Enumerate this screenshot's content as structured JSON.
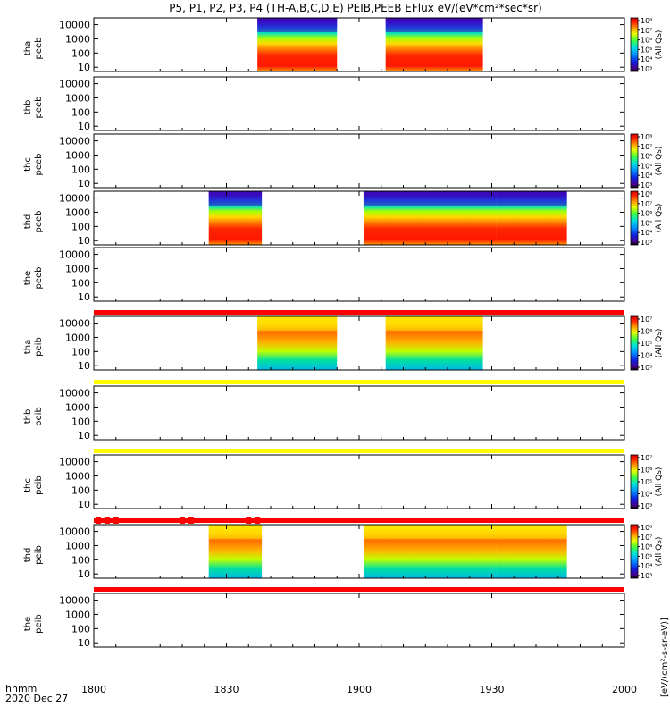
{
  "chart_data": {
    "type": "heatmap",
    "title": "P5, P1, P2, P3, P4 (TH-A,B,C,D,E) PEIB,PEEB EFlux eV/(eV*cm²*sec*sr)",
    "x": {
      "ticks": [
        "1800",
        "1830",
        "1900",
        "1930",
        "2000"
      ],
      "tick_minutes": [
        0,
        30,
        60,
        90,
        120
      ],
      "range_minutes": [
        0,
        120
      ],
      "label": "hhmm",
      "date": "2020 Dec 27"
    },
    "y": {
      "scale": "log",
      "range": [
        5,
        30000
      ],
      "ticks": [
        "10000",
        "1000",
        "100",
        "10"
      ],
      "tick_values": [
        10000,
        1000,
        100,
        10
      ]
    },
    "colorbars": [
      {
        "panels": [
          0,
          1
        ],
        "ticks": [
          "10⁸",
          "10⁷",
          "10⁶",
          "10⁵",
          "10⁴",
          "10³"
        ],
        "label": "(All Qs)"
      },
      {
        "panels": [
          2
        ],
        "ticks": [
          "10⁸",
          "10⁷",
          "10⁶",
          "10⁵",
          "10⁴",
          "10³"
        ],
        "label": "(All Qs)"
      },
      {
        "panels": [
          3,
          4
        ],
        "ticks": [
          "10⁸",
          "10⁷",
          "10⁶",
          "10⁵",
          "10⁴",
          "10³"
        ],
        "label": "(All Qs)"
      },
      {
        "panels": [
          5,
          6
        ],
        "ticks": [
          "10⁷",
          "10⁶",
          "10⁵",
          "10⁴",
          "10³"
        ],
        "label": "(All Qs)"
      },
      {
        "panels": [
          7
        ],
        "ticks": [
          "10⁷",
          "10⁶",
          "10⁵",
          "10⁴",
          "10³"
        ],
        "label": "(All Qs)"
      },
      {
        "panels": [
          8,
          9
        ],
        "ticks": [
          "10⁸",
          "10⁷",
          "10⁶",
          "10⁵",
          "10⁴",
          "10³"
        ],
        "label": "(All Qs)"
      }
    ],
    "colorbar_unit": "[eV/(cm²-s-sr-eV)]",
    "panels": [
      {
        "line1": "tha",
        "line2": "peeb",
        "flag_above": null,
        "flag_marks": [],
        "intervals": [
          {
            "start": 37,
            "end": 55,
            "profile": "e"
          },
          {
            "start": 66,
            "end": 88,
            "profile": "e"
          }
        ]
      },
      {
        "line1": "thb",
        "line2": "peeb",
        "flag_above": null,
        "flag_marks": [],
        "intervals": []
      },
      {
        "line1": "thc",
        "line2": "peeb",
        "flag_above": null,
        "flag_marks": [],
        "intervals": []
      },
      {
        "line1": "thd",
        "line2": "peeb",
        "flag_above": null,
        "flag_marks": [],
        "intervals": [
          {
            "start": 26,
            "end": 38,
            "profile": "e"
          },
          {
            "start": 61,
            "end": 91,
            "profile": "e"
          },
          {
            "start": 91,
            "end": 107,
            "profile": "e"
          }
        ]
      },
      {
        "line1": "the",
        "line2": "peeb",
        "flag_above": null,
        "flag_marks": [],
        "intervals": []
      },
      {
        "line1": "tha",
        "line2": "peib",
        "flag_above": "#ff0000",
        "flag_marks": [],
        "intervals": [
          {
            "start": 37,
            "end": 55,
            "profile": "i"
          },
          {
            "start": 66,
            "end": 88,
            "profile": "i"
          }
        ]
      },
      {
        "line1": "thb",
        "line2": "peib",
        "flag_above": "#ffff00",
        "flag_marks": [],
        "intervals": []
      },
      {
        "line1": "thc",
        "line2": "peib",
        "flag_above": "#ffff00",
        "flag_marks": [],
        "intervals": []
      },
      {
        "line1": "thd",
        "line2": "peib",
        "flag_above": "#ff0000",
        "flag_marks": [
          1,
          3,
          5,
          20,
          22,
          35,
          37
        ],
        "intervals": [
          {
            "start": 26,
            "end": 38,
            "profile": "i"
          },
          {
            "start": 61,
            "end": 91,
            "profile": "i"
          },
          {
            "start": 91,
            "end": 107,
            "profile": "i"
          }
        ]
      },
      {
        "line1": "the",
        "line2": "peib",
        "flag_above": "#ff0000",
        "flag_marks": [],
        "intervals": []
      }
    ]
  }
}
